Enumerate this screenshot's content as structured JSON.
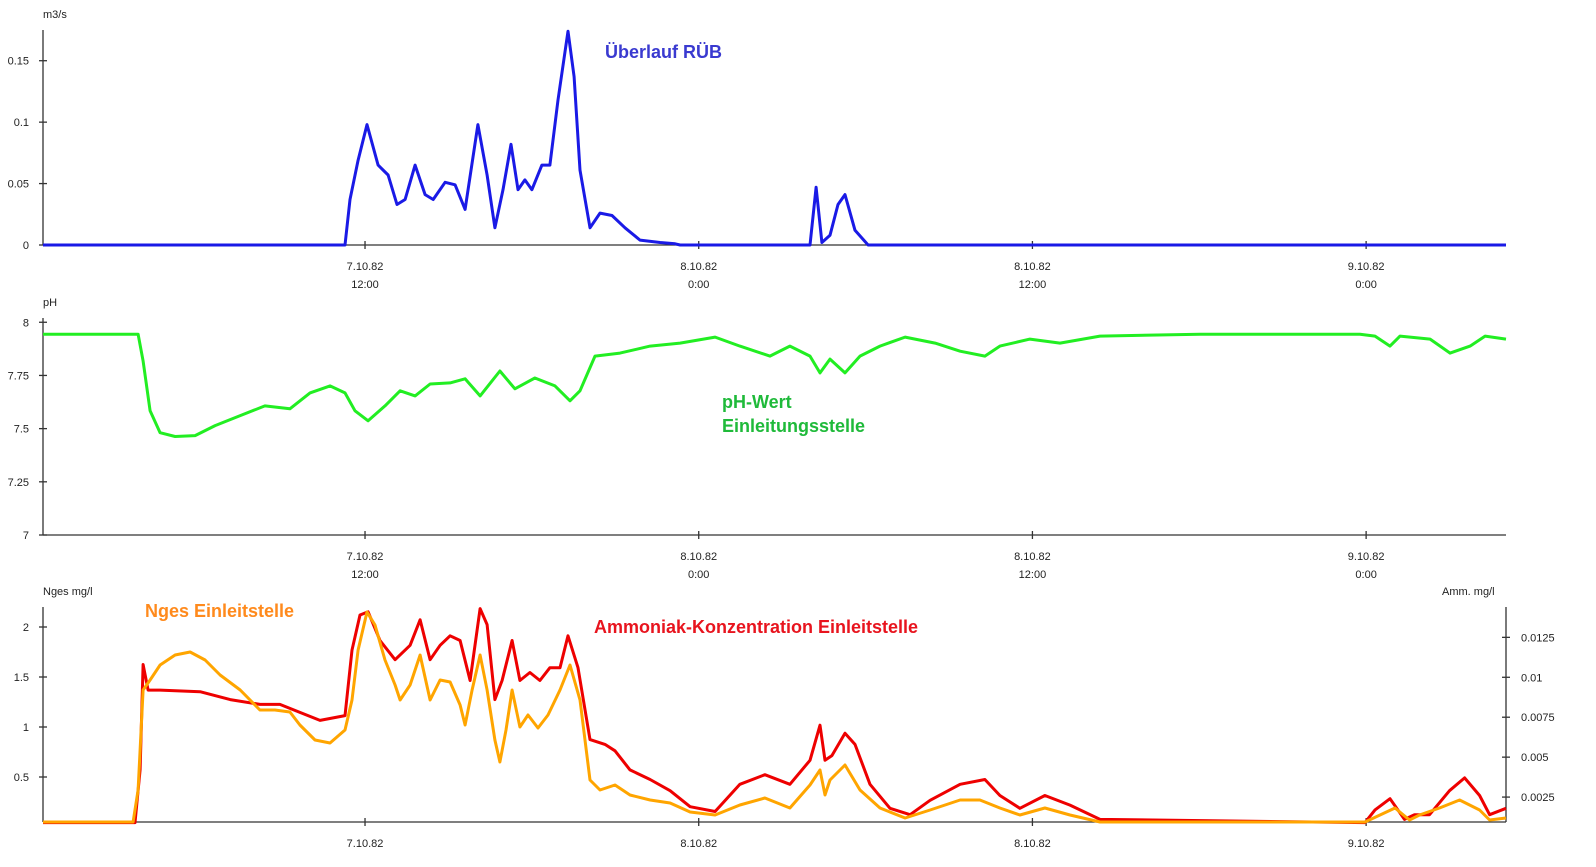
{
  "chart_data": [
    {
      "type": "line",
      "title": "Überlauf RÜB",
      "ylabel": "m3/s",
      "x_unit": "hours since 7.10.82 0:00",
      "xlim": [
        0.42,
        53.03
      ],
      "ylim": [
        0,
        0.175
      ],
      "yticks": [
        0,
        0.05,
        0.1,
        0.15
      ],
      "ytick_labels": [
        "0",
        "0.05",
        "0.1",
        "0.15"
      ],
      "xticks": [
        12,
        24,
        36,
        48
      ],
      "xtick_labels": [
        [
          "7.10.82",
          "12:00"
        ],
        [
          "8.10.82",
          "0:00"
        ],
        [
          "8.10.82",
          "12:00"
        ],
        [
          "9.10.82",
          "0:00"
        ]
      ],
      "grid": false,
      "series": [
        {
          "name": "Überlauf RÜB",
          "color": "#1a1ae6",
          "label_color": "#3a3ad0",
          "x": [
            0.42,
            11.28,
            11.46,
            11.75,
            12.07,
            12.47,
            12.83,
            13.15,
            13.44,
            13.8,
            14.16,
            14.45,
            14.88,
            15.24,
            15.6,
            16.06,
            16.39,
            16.67,
            16.96,
            17.25,
            17.5,
            17.75,
            18.0,
            18.36,
            18.65,
            18.94,
            19.3,
            19.52,
            19.73,
            20.09,
            20.45,
            20.88,
            21.35,
            21.89,
            22.61,
            23.15,
            23.33,
            28.0,
            28.22,
            28.43,
            28.72,
            29.01,
            29.26,
            29.62,
            30.09,
            53.03
          ],
          "y": [
            0,
            0,
            0.037,
            0.069,
            0.098,
            0.065,
            0.057,
            0.033,
            0.037,
            0.065,
            0.041,
            0.037,
            0.051,
            0.049,
            0.029,
            0.098,
            0.057,
            0.014,
            0.045,
            0.082,
            0.045,
            0.053,
            0.045,
            0.065,
            0.065,
            0.118,
            0.174,
            0.137,
            0.061,
            0.014,
            0.026,
            0.024,
            0.014,
            0.004,
            0.002,
            0.001,
            0,
            0,
            0.047,
            0.002,
            0.008,
            0.033,
            0.041,
            0.012,
            0,
            0
          ]
        }
      ]
    },
    {
      "type": "line",
      "title": "pH-Wert Einleitungsstelle",
      "ylabel": "pH",
      "x_unit": "hours since 7.10.82 0:00",
      "xlim": [
        0.42,
        53.03
      ],
      "ylim": [
        7,
        8.02
      ],
      "yticks": [
        7,
        7.25,
        7.5,
        7.75,
        8
      ],
      "ytick_labels": [
        "7",
        "7.25",
        "7.5",
        "7.75",
        "8"
      ],
      "xticks": [
        12,
        24,
        36,
        48
      ],
      "xtick_labels": [
        [
          "7.10.82",
          "12:00"
        ],
        [
          "8.10.82",
          "0:00"
        ],
        [
          "8.10.82",
          "12:00"
        ],
        [
          "9.10.82",
          "0:00"
        ]
      ],
      "grid": false,
      "series": [
        {
          "name": "pH-Wert Einleitungsstelle",
          "label_lines": [
            "pH-Wert",
            "Einleitungsstelle"
          ],
          "color": "#22ee22",
          "label_color": "#1fba3a",
          "x": [
            0.42,
            3.84,
            4.02,
            4.27,
            4.63,
            5.17,
            5.89,
            6.61,
            7.51,
            8.4,
            9.3,
            10.02,
            10.74,
            11.28,
            11.64,
            12.11,
            12.72,
            13.26,
            13.8,
            14.34,
            15.06,
            15.6,
            16.14,
            16.85,
            17.39,
            18.11,
            18.83,
            19.37,
            19.73,
            20.27,
            21.17,
            22.25,
            23.33,
            24.59,
            25.48,
            26.56,
            27.28,
            28.0,
            28.36,
            28.72,
            29.26,
            29.8,
            30.52,
            31.42,
            32.5,
            33.4,
            34.29,
            34.83,
            35.91,
            36.99,
            38.43,
            42.03,
            47.78,
            48.32,
            48.86,
            49.22,
            50.3,
            51.02,
            51.74,
            52.28,
            53.03
          ],
          "y": [
            7.944,
            7.944,
            7.818,
            7.584,
            7.481,
            7.463,
            7.467,
            7.514,
            7.561,
            7.607,
            7.593,
            7.668,
            7.701,
            7.668,
            7.584,
            7.537,
            7.607,
            7.678,
            7.654,
            7.71,
            7.715,
            7.734,
            7.654,
            7.771,
            7.687,
            7.738,
            7.701,
            7.631,
            7.678,
            7.841,
            7.855,
            7.888,
            7.902,
            7.93,
            7.888,
            7.841,
            7.888,
            7.841,
            7.762,
            7.827,
            7.762,
            7.841,
            7.888,
            7.93,
            7.902,
            7.864,
            7.841,
            7.888,
            7.921,
            7.902,
            7.935,
            7.944,
            7.944,
            7.935,
            7.888,
            7.935,
            7.921,
            7.855,
            7.888,
            7.935,
            7.921
          ]
        }
      ]
    },
    {
      "type": "line",
      "title": "Nges / Ammoniak-Konzentration Einleitstelle",
      "ylabel": "Nges mg/l",
      "ylabel_right": "Amm. mg/l",
      "x_unit": "hours since 7.10.82 0:00",
      "xlim": [
        0.42,
        53.03
      ],
      "ylim": [
        0.05,
        2.2
      ],
      "ylim_right": [
        0.00094,
        0.0144
      ],
      "yticks": [
        0.5,
        1,
        1.5,
        2
      ],
      "ytick_labels": [
        "0.5",
        "1",
        "1.5",
        "2"
      ],
      "yticks_right": [
        0.0025,
        0.005,
        0.0075,
        0.01,
        0.0125
      ],
      "ytick_labels_right": [
        "0.0025",
        "0.005",
        "0.0075",
        "0.01",
        "0.0125"
      ],
      "xticks": [
        12,
        24,
        36,
        48
      ],
      "xtick_labels": [
        [
          "7.10.82"
        ],
        [
          "8.10.82"
        ],
        [
          "8.10.82"
        ],
        [
          "9.10.82"
        ]
      ],
      "grid": false,
      "series": [
        {
          "name": "Ammoniak-Konzentration Einleitstelle",
          "axis": "right",
          "color": "#ee0000",
          "label_color": "#e8141e",
          "x": [
            0.42,
            3.73,
            3.91,
            4.02,
            4.2,
            4.63,
            6.07,
            7.15,
            8.22,
            8.94,
            9.66,
            10.38,
            11.28,
            11.53,
            11.82,
            12.11,
            12.54,
            13.08,
            13.62,
            13.98,
            14.34,
            14.7,
            15.06,
            15.42,
            15.78,
            16.14,
            16.39,
            16.67,
            16.93,
            17.29,
            17.57,
            17.93,
            18.29,
            18.65,
            19.01,
            19.3,
            19.66,
            20.09,
            20.63,
            20.99,
            21.53,
            22.25,
            22.97,
            23.69,
            24.59,
            25.48,
            26.38,
            27.28,
            28.0,
            28.36,
            28.54,
            28.79,
            29.26,
            29.62,
            30.16,
            30.88,
            31.6,
            32.32,
            33.4,
            34.29,
            34.83,
            35.55,
            36.45,
            37.35,
            38.43,
            47.96,
            48.32,
            48.86,
            49.38,
            49.74,
            50.28,
            51.0,
            51.54,
            52.08,
            52.44,
            53.03
          ],
          "y": [
            0.0009,
            0.0009,
            0.0042,
            0.0108,
            0.0092,
            0.0092,
            0.0091,
            0.0086,
            0.0083,
            0.0083,
            0.0078,
            0.0073,
            0.0076,
            0.0117,
            0.0139,
            0.0141,
            0.0123,
            0.0111,
            0.012,
            0.0136,
            0.0111,
            0.012,
            0.0126,
            0.0123,
            0.0098,
            0.0143,
            0.0133,
            0.0086,
            0.0098,
            0.0123,
            0.0098,
            0.0103,
            0.0098,
            0.0106,
            0.0106,
            0.0126,
            0.0106,
            0.0061,
            0.0058,
            0.0054,
            0.0042,
            0.0036,
            0.0029,
            0.0019,
            0.0016,
            0.0033,
            0.0039,
            0.0033,
            0.0048,
            0.007,
            0.0048,
            0.0051,
            0.0065,
            0.0058,
            0.0033,
            0.0018,
            0.0014,
            0.0023,
            0.0033,
            0.0036,
            0.0026,
            0.0018,
            0.0026,
            0.002,
            0.0011,
            0.0009,
            0.0017,
            0.0024,
            0.0011,
            0.0014,
            0.0014,
            0.0029,
            0.0037,
            0.0026,
            0.0014,
            0.0018
          ]
        },
        {
          "name": "Nges Einleitstelle",
          "axis": "left",
          "color": "#ffa500",
          "label_color": "#ff8a1c",
          "x": [
            0.42,
            3.66,
            3.84,
            4.02,
            4.27,
            4.63,
            5.17,
            5.71,
            6.25,
            6.79,
            7.51,
            8.22,
            8.76,
            9.3,
            9.66,
            10.2,
            10.74,
            11.28,
            11.53,
            11.75,
            12.07,
            12.36,
            12.72,
            13.08,
            13.26,
            13.62,
            13.98,
            14.34,
            14.7,
            15.06,
            15.42,
            15.6,
            15.85,
            16.14,
            16.39,
            16.67,
            16.85,
            17.07,
            17.29,
            17.57,
            17.86,
            18.22,
            18.58,
            19.01,
            19.37,
            19.73,
            20.09,
            20.45,
            20.99,
            21.53,
            22.25,
            22.97,
            23.69,
            24.59,
            25.48,
            26.38,
            27.28,
            28.0,
            28.36,
            28.54,
            28.72,
            29.26,
            29.8,
            30.52,
            31.42,
            32.32,
            33.4,
            34.11,
            34.83,
            35.55,
            36.45,
            37.35,
            38.43,
            47.96,
            48.5,
            49.04,
            49.56,
            49.92,
            50.64,
            51.36,
            52.08,
            52.44,
            53.03
          ],
          "y": [
            0.05,
            0.05,
            0.37,
            1.37,
            1.47,
            1.62,
            1.72,
            1.75,
            1.67,
            1.52,
            1.37,
            1.17,
            1.17,
            1.15,
            1.02,
            0.87,
            0.84,
            0.97,
            1.27,
            1.77,
            2.15,
            2.02,
            1.67,
            1.42,
            1.27,
            1.42,
            1.72,
            1.27,
            1.47,
            1.45,
            1.22,
            1.02,
            1.37,
            1.72,
            1.37,
            0.87,
            0.65,
            0.97,
            1.37,
            1.0,
            1.12,
            0.99,
            1.12,
            1.37,
            1.62,
            1.27,
            0.47,
            0.37,
            0.42,
            0.32,
            0.27,
            0.24,
            0.15,
            0.12,
            0.22,
            0.29,
            0.19,
            0.42,
            0.57,
            0.32,
            0.47,
            0.62,
            0.37,
            0.19,
            0.09,
            0.17,
            0.27,
            0.27,
            0.19,
            0.12,
            0.19,
            0.12,
            0.05,
            0.05,
            0.12,
            0.19,
            0.07,
            0.12,
            0.19,
            0.27,
            0.17,
            0.07,
            0.09
          ]
        }
      ]
    }
  ]
}
